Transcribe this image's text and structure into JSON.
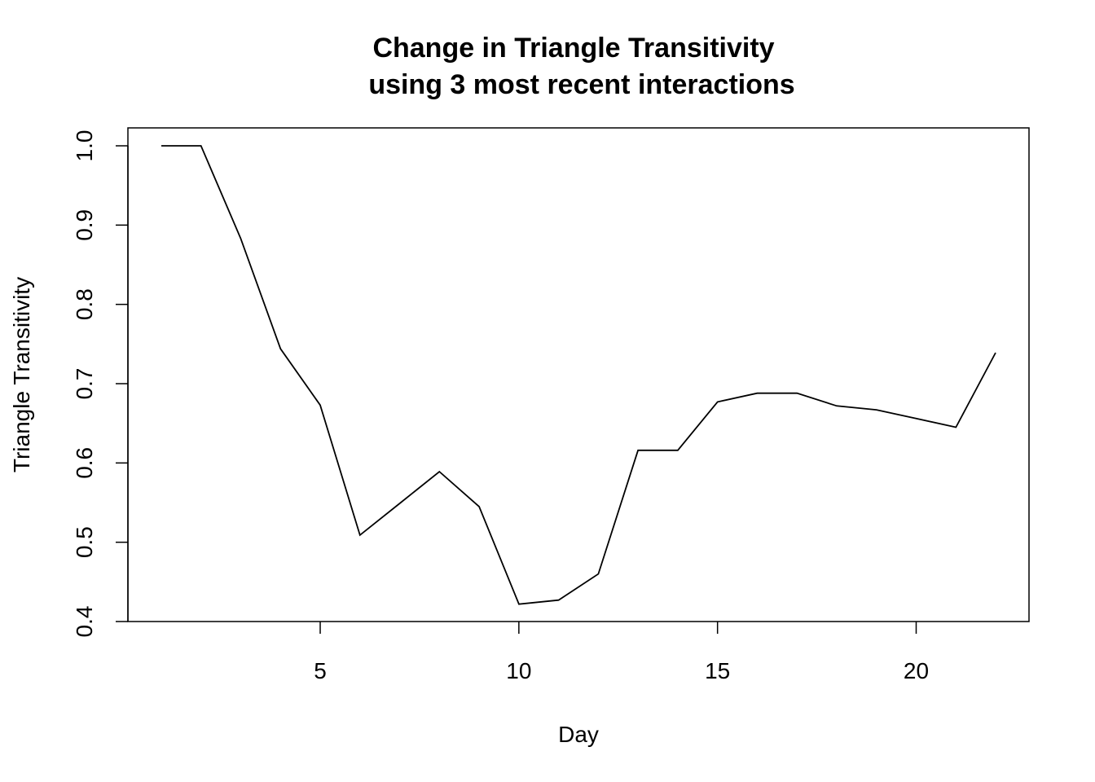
{
  "chart_data": {
    "type": "line",
    "title_lines": [
      "Change in Triangle Transitivity",
      "using 3 most recent interactions"
    ],
    "xlabel": "Day",
    "ylabel": "Triangle Transitivity",
    "xlim": [
      0.16,
      22.84
    ],
    "ylim": [
      0.4,
      1.0
    ],
    "x_ticks": [
      5,
      10,
      15,
      20
    ],
    "x_tick_labels": [
      "5",
      "10",
      "15",
      "20"
    ],
    "y_ticks": [
      0.4,
      0.5,
      0.6,
      0.7,
      0.8,
      0.9,
      1.0
    ],
    "y_tick_labels": [
      "0.4",
      "0.5",
      "0.6",
      "0.7",
      "0.8",
      "0.9",
      "1.0"
    ],
    "grid": false,
    "series": [
      {
        "x": [
          1,
          2,
          3,
          4,
          5,
          6,
          7,
          8,
          9,
          10,
          11,
          12,
          13,
          14,
          15,
          16,
          17,
          18,
          19,
          20,
          21,
          22
        ],
        "values": [
          1.0,
          1.0,
          0.883,
          0.744,
          0.673,
          0.509,
          0.549,
          0.589,
          0.545,
          0.422,
          0.427,
          0.46,
          0.616,
          0.616,
          0.677,
          0.688,
          0.688,
          0.672,
          0.667,
          0.656,
          0.645,
          0.739
        ],
        "color": "#000000"
      }
    ]
  }
}
